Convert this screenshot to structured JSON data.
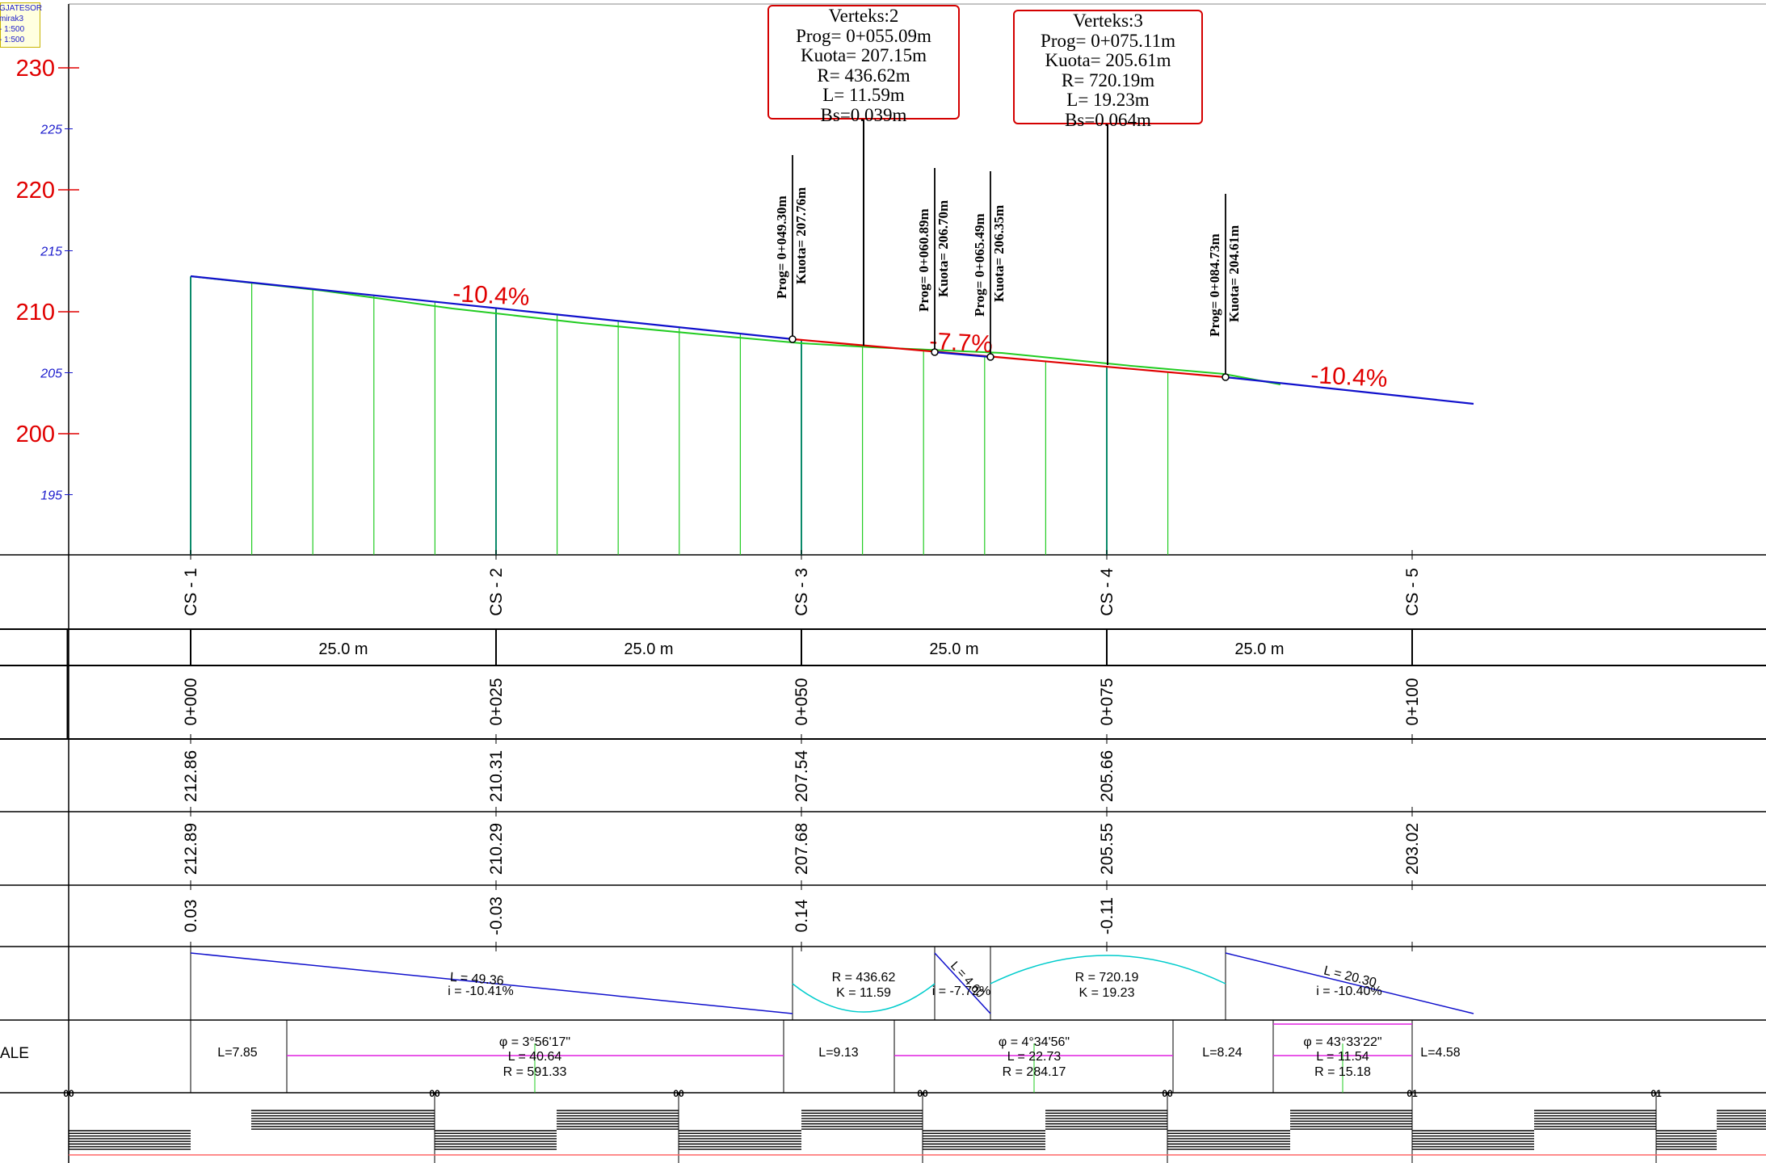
{
  "legend": {
    "lines": [
      "GJATESOR",
      "mirak3",
      "- 1:500",
      "- 1:500"
    ]
  },
  "axis": {
    "major": [
      230,
      220,
      210,
      200
    ],
    "minor": [
      225,
      215,
      205,
      195
    ],
    "major_color": "#e00000",
    "minor_color": "#1a1acc"
  },
  "vertices": [
    {
      "lines": [
        "Verteks:2",
        "Prog=  0+055.09m",
        "Kuota=  207.15m",
        "R=  436.62m",
        "L=  11.59m",
        "Bs=0.039m"
      ]
    },
    {
      "lines": [
        "Verteks:3",
        "Prog=  0+075.11m",
        "Kuota=  205.61m",
        "R=  720.19m",
        "L=  19.23m",
        "Bs=0.064m"
      ]
    }
  ],
  "points": [
    {
      "prog": "Prog=  0+049.30m",
      "kuota": "Kuota=  207.76m"
    },
    {
      "prog": "Prog=  0+060.89m",
      "kuota": "Kuota=  206.70m"
    },
    {
      "prog": "Prog=  0+065.49m",
      "kuota": "Kuota=  206.35m"
    },
    {
      "prog": "Prog=  0+084.73m",
      "kuota": "Kuota=  204.61m"
    }
  ],
  "grades": [
    "-10.4%",
    "-7.7%",
    "-10.4%"
  ],
  "sections": [
    "CS - 1",
    "CS - 2",
    "CS - 3",
    "CS - 4",
    "CS - 5"
  ],
  "distances": [
    "25.0 m",
    "25.0 m",
    "25.0 m",
    "25.0 m"
  ],
  "stations": [
    "0+000",
    "0+025",
    "0+050",
    "0+075",
    "0+100"
  ],
  "terrain": [
    "212.86",
    "210.31",
    "207.54",
    "205.66"
  ],
  "design": [
    "212.89",
    "210.29",
    "207.68",
    "205.55",
    "203.02"
  ],
  "differences": [
    "0.03",
    "-0.03",
    "0.14",
    "-0.11"
  ],
  "vertical_elements": [
    {
      "l1": "L = 49.36",
      "l2": "i = -10.41%"
    },
    {
      "l1": "R = 436.62",
      "l2": "K = 11.59"
    },
    {
      "l1": "L = 4.60",
      "l2": "i = -7.72%"
    },
    {
      "l1": "R = 720.19",
      "l2": "K = 19.23"
    },
    {
      "l1": "L = 20.30",
      "l2": "i = -10.40%"
    }
  ],
  "horizontal_elements": {
    "tangents": [
      "L=7.85",
      "L=9.13",
      "L=8.24",
      "L=4.58"
    ],
    "curves": [
      {
        "phi": "φ = 3°56'17\"",
        "l": "L = 40.64",
        "r": "R = 591.33"
      },
      {
        "phi": "φ = 4°34'56\"",
        "l": "L = 22.73",
        "r": "R = 284.17"
      },
      {
        "phi": "φ = 43°33'22\"",
        "l": "L = 11.54",
        "r": "R = 15.18"
      }
    ]
  },
  "side_label": "ALE",
  "kilometer_marks": [
    "00",
    "00",
    "00",
    "00",
    "00",
    "01",
    "01"
  ],
  "colors": {
    "grade_red": "#e00000",
    "line_blue": "#1010cc",
    "terrain_green": "#22cc22",
    "curve_cyan": "#00cccc",
    "curve_magenta": "#e020e0"
  }
}
